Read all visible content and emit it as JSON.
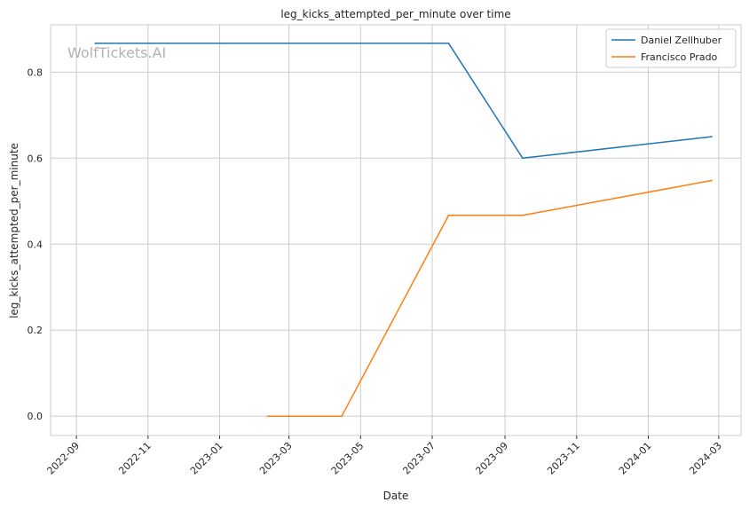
{
  "chart_data": {
    "type": "line",
    "title": "leg_kicks_attempted_per_minute over time",
    "xlabel": "Date",
    "ylabel": "leg_kicks_attempted_per_minute",
    "xlim": [
      "2022-08-10",
      "2024-03-20"
    ],
    "ylim": [
      -0.045,
      0.91
    ],
    "x_ticks": [
      "2022-09",
      "2022-11",
      "2023-01",
      "2023-03",
      "2023-05",
      "2023-07",
      "2023-09",
      "2023-11",
      "2024-01",
      "2024-03"
    ],
    "y_ticks": [
      0.0,
      0.2,
      0.4,
      0.6,
      0.8
    ],
    "grid": true,
    "legend_position": "top-right",
    "watermark": "WolfTickets.AI",
    "series": [
      {
        "name": "Daniel Zellhuber",
        "color": "#1f77b4",
        "points": [
          {
            "x": "2022-09-17",
            "y": 0.867
          },
          {
            "x": "2023-07-15",
            "y": 0.867
          },
          {
            "x": "2023-09-16",
            "y": 0.6
          },
          {
            "x": "2024-02-24",
            "y": 0.65
          }
        ]
      },
      {
        "name": "Francisco Prado",
        "color": "#ff7f0e",
        "points": [
          {
            "x": "2023-02-11",
            "y": 0.0
          },
          {
            "x": "2023-04-15",
            "y": 0.0
          },
          {
            "x": "2023-07-15",
            "y": 0.467
          },
          {
            "x": "2023-09-16",
            "y": 0.467
          },
          {
            "x": "2024-02-24",
            "y": 0.548
          }
        ]
      }
    ]
  }
}
